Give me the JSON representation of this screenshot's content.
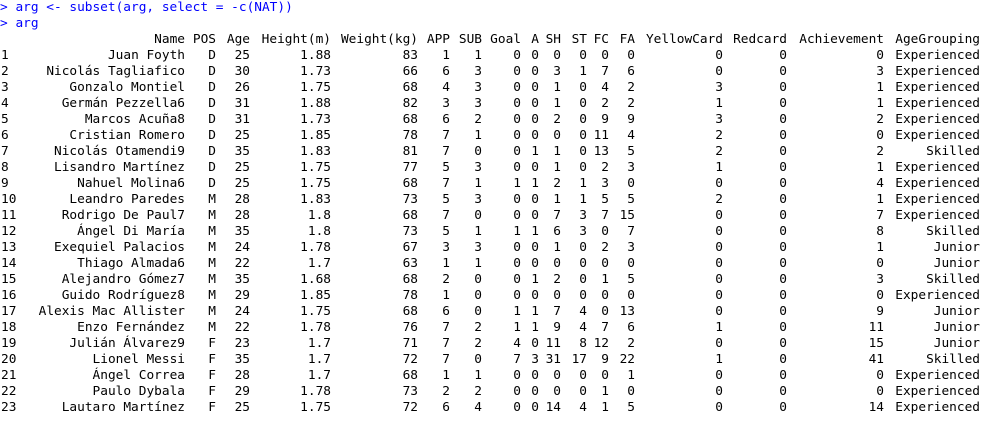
{
  "console": {
    "prompt": ">",
    "commands": [
      "arg <- subset(arg, select = -c(NAT))",
      "arg"
    ]
  },
  "table": {
    "columns": [
      "",
      "Name",
      "POS",
      "Age",
      "Height(m)",
      "Weight(kg)",
      "APP",
      "SUB",
      "Goal",
      "A",
      "SH",
      "ST",
      "FC",
      "FA",
      "YellowCard",
      "Redcard",
      "Achievement",
      "AgeGrouping"
    ],
    "rows": [
      [
        "1",
        "Juan Foyth",
        "D",
        "25",
        "1.88",
        "83",
        "1",
        "1",
        "0",
        "0",
        "0",
        "0",
        "0",
        "0",
        "0",
        "0",
        "0",
        "Experienced"
      ],
      [
        "2",
        "Nicolás Tagliafico",
        "D",
        "30",
        "1.73",
        "66",
        "6",
        "3",
        "0",
        "0",
        "3",
        "1",
        "7",
        "6",
        "0",
        "0",
        "3",
        "Experienced"
      ],
      [
        "3",
        "Gonzalo Montiel",
        "D",
        "26",
        "1.75",
        "68",
        "4",
        "3",
        "0",
        "0",
        "1",
        "0",
        "4",
        "2",
        "3",
        "0",
        "1",
        "Experienced"
      ],
      [
        "4",
        "Germán Pezzella6",
        "D",
        "31",
        "1.88",
        "82",
        "3",
        "3",
        "0",
        "0",
        "1",
        "0",
        "2",
        "2",
        "1",
        "0",
        "1",
        "Experienced"
      ],
      [
        "5",
        "Marcos Acuña8",
        "D",
        "31",
        "1.73",
        "68",
        "6",
        "2",
        "0",
        "0",
        "2",
        "0",
        "9",
        "9",
        "3",
        "0",
        "2",
        "Experienced"
      ],
      [
        "6",
        "Cristian Romero",
        "D",
        "25",
        "1.85",
        "78",
        "7",
        "1",
        "0",
        "0",
        "0",
        "0",
        "11",
        "4",
        "2",
        "0",
        "0",
        "Experienced"
      ],
      [
        "7",
        "Nicolás Otamendi9",
        "D",
        "35",
        "1.83",
        "81",
        "7",
        "0",
        "0",
        "1",
        "1",
        "0",
        "13",
        "5",
        "2",
        "0",
        "2",
        "Skilled"
      ],
      [
        "8",
        "Lisandro Martínez",
        "D",
        "25",
        "1.75",
        "77",
        "5",
        "3",
        "0",
        "0",
        "1",
        "0",
        "2",
        "3",
        "1",
        "0",
        "1",
        "Experienced"
      ],
      [
        "9",
        "Nahuel Molina6",
        "D",
        "25",
        "1.75",
        "68",
        "7",
        "1",
        "1",
        "1",
        "2",
        "1",
        "3",
        "0",
        "0",
        "0",
        "4",
        "Experienced"
      ],
      [
        "10",
        "Leandro Paredes",
        "M",
        "28",
        "1.83",
        "73",
        "5",
        "3",
        "0",
        "0",
        "1",
        "1",
        "5",
        "5",
        "2",
        "0",
        "1",
        "Experienced"
      ],
      [
        "11",
        "Rodrigo De Paul7",
        "M",
        "28",
        "1.8",
        "68",
        "7",
        "0",
        "0",
        "0",
        "7",
        "3",
        "7",
        "15",
        "0",
        "0",
        "7",
        "Experienced"
      ],
      [
        "12",
        "Ángel Di María",
        "M",
        "35",
        "1.8",
        "73",
        "5",
        "1",
        "1",
        "1",
        "6",
        "3",
        "0",
        "7",
        "0",
        "0",
        "8",
        "Skilled"
      ],
      [
        "13",
        "Exequiel Palacios",
        "M",
        "24",
        "1.78",
        "67",
        "3",
        "3",
        "0",
        "0",
        "1",
        "0",
        "2",
        "3",
        "0",
        "0",
        "1",
        "Junior"
      ],
      [
        "14",
        "Thiago Almada6",
        "M",
        "22",
        "1.7",
        "63",
        "1",
        "1",
        "0",
        "0",
        "0",
        "0",
        "0",
        "0",
        "0",
        "0",
        "0",
        "Junior"
      ],
      [
        "15",
        "Alejandro Gómez7",
        "M",
        "35",
        "1.68",
        "68",
        "2",
        "0",
        "0",
        "1",
        "2",
        "0",
        "1",
        "5",
        "0",
        "0",
        "3",
        "Skilled"
      ],
      [
        "16",
        "Guido Rodríguez8",
        "M",
        "29",
        "1.85",
        "78",
        "1",
        "0",
        "0",
        "0",
        "0",
        "0",
        "0",
        "0",
        "0",
        "0",
        "0",
        "Experienced"
      ],
      [
        "17",
        "Alexis Mac Allister",
        "M",
        "24",
        "1.75",
        "68",
        "6",
        "0",
        "1",
        "1",
        "7",
        "4",
        "0",
        "13",
        "0",
        "0",
        "9",
        "Junior"
      ],
      [
        "18",
        "Enzo Fernández",
        "M",
        "22",
        "1.78",
        "76",
        "7",
        "2",
        "1",
        "1",
        "9",
        "4",
        "7",
        "6",
        "1",
        "0",
        "11",
        "Junior"
      ],
      [
        "19",
        "Julián Álvarez9",
        "F",
        "23",
        "1.7",
        "71",
        "7",
        "2",
        "4",
        "0",
        "11",
        "8",
        "12",
        "2",
        "0",
        "0",
        "15",
        "Junior"
      ],
      [
        "20",
        "Lionel Messi",
        "F",
        "35",
        "1.7",
        "72",
        "7",
        "0",
        "7",
        "3",
        "31",
        "17",
        "9",
        "22",
        "1",
        "0",
        "41",
        "Skilled"
      ],
      [
        "21",
        "Ángel Correa",
        "F",
        "28",
        "1.7",
        "68",
        "1",
        "1",
        "0",
        "0",
        "0",
        "0",
        "0",
        "1",
        "0",
        "0",
        "0",
        "Experienced"
      ],
      [
        "22",
        "Paulo Dybala",
        "F",
        "29",
        "1.78",
        "73",
        "2",
        "2",
        "0",
        "0",
        "0",
        "0",
        "1",
        "0",
        "0",
        "0",
        "0",
        "Experienced"
      ],
      [
        "23",
        "Lautaro Martínez",
        "F",
        "25",
        "1.75",
        "72",
        "6",
        "4",
        "0",
        "0",
        "14",
        "4",
        "1",
        "5",
        "0",
        "0",
        "14",
        "Experienced"
      ]
    ]
  },
  "colors": {
    "command": "#0000ff",
    "output": "#000000",
    "background": "#ffffff"
  }
}
